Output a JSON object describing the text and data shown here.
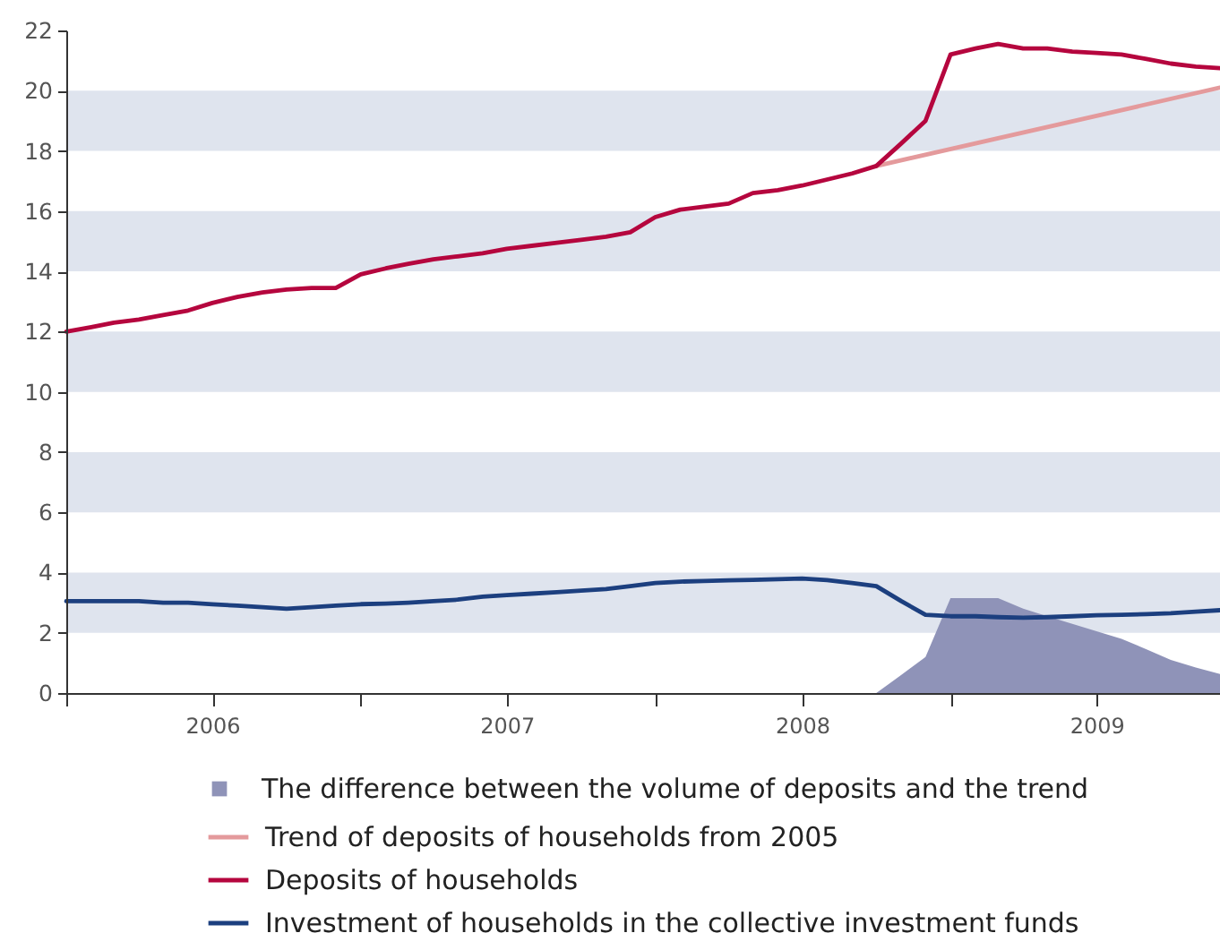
{
  "chart_data": {
    "type": "line",
    "x": [
      "2006-01",
      "2006-02",
      "2006-03",
      "2006-04",
      "2006-05",
      "2006-06",
      "2006-07",
      "2006-08",
      "2006-09",
      "2006-10",
      "2006-11",
      "2006-12",
      "2007-01",
      "2007-02",
      "2007-03",
      "2007-04",
      "2007-05",
      "2007-06",
      "2007-07",
      "2007-08",
      "2007-09",
      "2007-10",
      "2007-11",
      "2007-12",
      "2008-01",
      "2008-02",
      "2008-03",
      "2008-04",
      "2008-05",
      "2008-06",
      "2008-07",
      "2008-08",
      "2008-09",
      "2008-10",
      "2008-11",
      "2008-12",
      "2009-01",
      "2009-02",
      "2009-03",
      "2009-04",
      "2009-05",
      "2009-06",
      "2009-07",
      "2009-08",
      "2009-09",
      "2009-10",
      "2009-11",
      "2009-12"
    ],
    "series": [
      {
        "name": "The difference between the volume of deposits and the trend",
        "type": "area",
        "color": "#8f93b8",
        "x": [
          "2008-10",
          "2008-11",
          "2008-12",
          "2009-01",
          "2009-02",
          "2009-03",
          "2009-04",
          "2009-05",
          "2009-06",
          "2009-07",
          "2009-08",
          "2009-09",
          "2009-10",
          "2009-11",
          "2009-12"
        ],
        "values": [
          0,
          0.6,
          1.2,
          3.15,
          3.15,
          3.15,
          2.8,
          2.55,
          2.3,
          2.05,
          1.8,
          1.45,
          1.1,
          0.85,
          0.63
        ]
      },
      {
        "name": "Trend of deposits of households from 2005",
        "type": "line",
        "color": "#e49a9c",
        "x": [
          "2008-10",
          "2009-12"
        ],
        "values": [
          17.5,
          20.1
        ]
      },
      {
        "name": "Deposits of households",
        "type": "line",
        "color": "#b5063e",
        "values": [
          12.0,
          12.15,
          12.3,
          12.4,
          12.55,
          12.7,
          12.95,
          13.15,
          13.3,
          13.4,
          13.45,
          13.45,
          13.9,
          14.1,
          14.25,
          14.4,
          14.5,
          14.6,
          14.75,
          14.85,
          14.95,
          15.05,
          15.15,
          15.3,
          15.8,
          16.05,
          16.15,
          16.25,
          16.6,
          16.7,
          16.85,
          17.05,
          17.25,
          17.5,
          18.25,
          19.0,
          21.2,
          21.4,
          21.55,
          21.4,
          21.4,
          21.3,
          21.25,
          21.2,
          21.05,
          20.9,
          20.8,
          20.75
        ]
      },
      {
        "name": "Investment of households in the collective investment funds",
        "type": "line",
        "color": "#1c3f7f",
        "values": [
          3.05,
          3.05,
          3.05,
          3.05,
          3.0,
          3.0,
          2.95,
          2.9,
          2.85,
          2.8,
          2.85,
          2.9,
          2.95,
          2.97,
          3.0,
          3.05,
          3.1,
          3.2,
          3.25,
          3.3,
          3.35,
          3.4,
          3.45,
          3.55,
          3.65,
          3.7,
          3.72,
          3.74,
          3.76,
          3.78,
          3.8,
          3.75,
          3.65,
          3.55,
          3.05,
          2.6,
          2.55,
          2.55,
          2.52,
          2.5,
          2.52,
          2.55,
          2.58,
          2.6,
          2.62,
          2.65,
          2.7,
          2.75
        ]
      }
    ],
    "xlim": [
      "2006-01",
      "2009-12"
    ],
    "xticks": [
      {
        "value": "2006-01",
        "label": null
      },
      {
        "value": "2006-07",
        "label": "2006"
      },
      {
        "value": "2007-01",
        "label": null
      },
      {
        "value": "2007-07",
        "label": "2007"
      },
      {
        "value": "2008-01",
        "label": null
      },
      {
        "value": "2008-07",
        "label": "2008"
      },
      {
        "value": "2009-01",
        "label": null
      },
      {
        "value": "2009-07",
        "label": "2009"
      }
    ],
    "ylim": [
      0,
      22
    ],
    "yticks": [
      0,
      2,
      4,
      6,
      8,
      10,
      12,
      14,
      16,
      18,
      20,
      22
    ],
    "bands": [
      {
        "axis": "y",
        "from": 2,
        "to": 4,
        "color": "#dfe4ee"
      },
      {
        "axis": "y",
        "from": 6,
        "to": 8,
        "color": "#dfe4ee"
      },
      {
        "axis": "y",
        "from": 10,
        "to": 12,
        "color": "#dfe4ee"
      },
      {
        "axis": "y",
        "from": 14,
        "to": 16,
        "color": "#dfe4ee"
      },
      {
        "axis": "y",
        "from": 18,
        "to": 20,
        "color": "#dfe4ee"
      }
    ],
    "grid": false,
    "legend": "bottom"
  }
}
